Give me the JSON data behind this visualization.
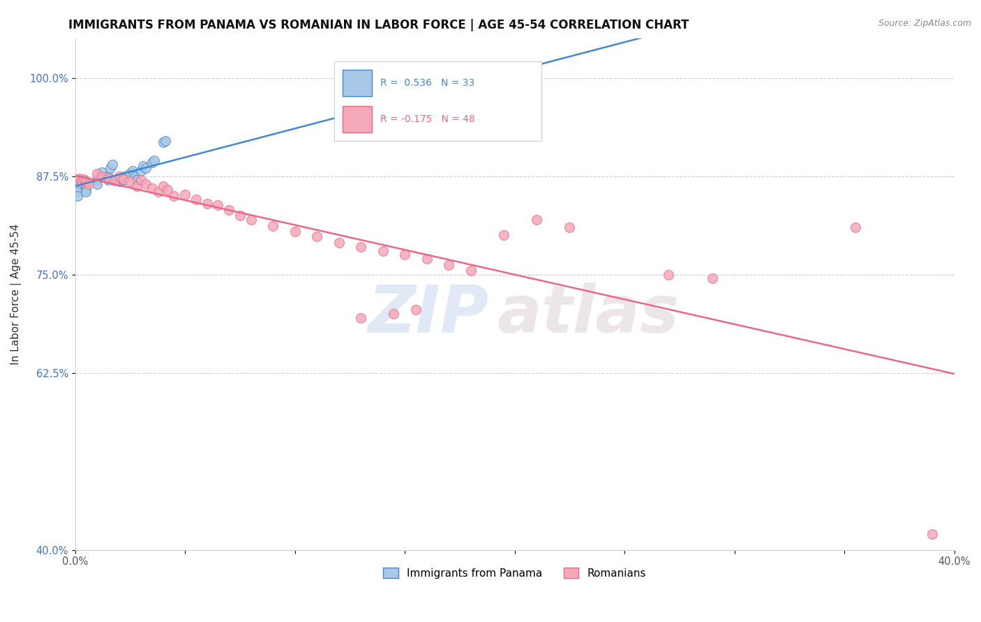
{
  "title": "IMMIGRANTS FROM PANAMA VS ROMANIAN IN LABOR FORCE | AGE 45-54 CORRELATION CHART",
  "source_text": "Source: ZipAtlas.com",
  "ylabel": "In Labor Force | Age 45-54",
  "xlim": [
    0.0,
    0.4
  ],
  "ylim": [
    0.4,
    1.05
  ],
  "xticks": [
    0.0,
    0.05,
    0.1,
    0.15,
    0.2,
    0.25,
    0.3,
    0.35,
    0.4
  ],
  "xticklabels": [
    "0.0%",
    "",
    "",
    "",
    "",
    "",
    "",
    "",
    "40.0%"
  ],
  "ytick_positions": [
    0.4,
    0.625,
    0.75,
    0.875,
    1.0
  ],
  "ytick_labels": [
    "40.0%",
    "62.5%",
    "75.0%",
    "87.5%",
    "100.0%"
  ],
  "panama_R": 0.536,
  "panama_N": 33,
  "romanian_R": -0.175,
  "romanian_N": 48,
  "panama_color": "#A8C8E8",
  "romanian_color": "#F4A8B8",
  "panama_line_color": "#4488CC",
  "romanian_line_color": "#E86888",
  "watermark_zip": "ZIP",
  "watermark_atlas": "atlas",
  "panama_x": [
    0.001,
    0.001,
    0.001,
    0.001,
    0.001,
    0.001,
    0.001,
    0.005,
    0.005,
    0.005,
    0.01,
    0.01,
    0.012,
    0.015,
    0.015,
    0.016,
    0.017,
    0.02,
    0.021,
    0.022,
    0.022,
    0.025,
    0.026,
    0.027,
    0.028,
    0.03,
    0.031,
    0.032,
    0.035,
    0.036,
    0.04,
    0.041,
    0.2
  ],
  "panama_y": [
    0.87,
    0.868,
    0.865,
    0.862,
    0.858,
    0.855,
    0.85,
    0.862,
    0.858,
    0.855,
    0.87,
    0.865,
    0.88,
    0.875,
    0.87,
    0.885,
    0.89,
    0.868,
    0.872,
    0.87,
    0.875,
    0.878,
    0.882,
    0.875,
    0.87,
    0.882,
    0.888,
    0.885,
    0.892,
    0.895,
    0.918,
    0.92,
    1.0
  ],
  "romanian_x": [
    0.001,
    0.002,
    0.003,
    0.004,
    0.005,
    0.006,
    0.01,
    0.012,
    0.015,
    0.018,
    0.02,
    0.022,
    0.025,
    0.028,
    0.03,
    0.032,
    0.035,
    0.038,
    0.04,
    0.042,
    0.045,
    0.05,
    0.055,
    0.06,
    0.065,
    0.07,
    0.075,
    0.08,
    0.09,
    0.1,
    0.11,
    0.12,
    0.13,
    0.14,
    0.15,
    0.16,
    0.17,
    0.18,
    0.195,
    0.21,
    0.225,
    0.13,
    0.145,
    0.155,
    0.27,
    0.29,
    0.355,
    0.39
  ],
  "romanian_y": [
    0.87,
    0.872,
    0.868,
    0.871,
    0.868,
    0.865,
    0.878,
    0.875,
    0.872,
    0.869,
    0.875,
    0.871,
    0.868,
    0.862,
    0.87,
    0.865,
    0.86,
    0.855,
    0.862,
    0.858,
    0.85,
    0.852,
    0.845,
    0.84,
    0.838,
    0.832,
    0.825,
    0.82,
    0.812,
    0.805,
    0.798,
    0.79,
    0.785,
    0.78,
    0.775,
    0.77,
    0.762,
    0.755,
    0.8,
    0.82,
    0.81,
    0.695,
    0.7,
    0.705,
    0.75,
    0.745,
    0.81,
    0.42
  ]
}
